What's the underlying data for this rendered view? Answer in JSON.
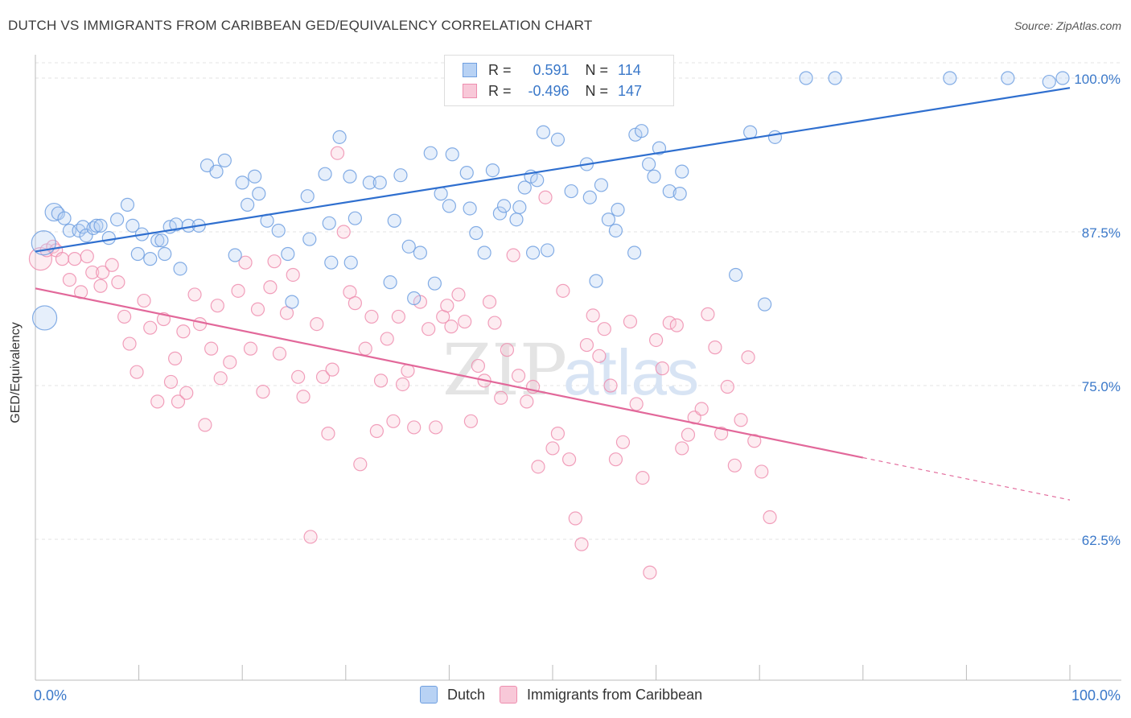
{
  "title": "DUTCH VS IMMIGRANTS FROM CARIBBEAN GED/EQUIVALENCY CORRELATION CHART",
  "source": "Source: ZipAtlas.com",
  "watermark": {
    "zip": "ZIP",
    "atlas": "atlas"
  },
  "legend_top": {
    "dutch": {
      "r_label": "R =",
      "r_value": "0.591",
      "n_label": "N =",
      "n_value": "114"
    },
    "caribbean": {
      "r_label": "R =",
      "r_value": "-0.496",
      "n_label": "N =",
      "n_value": "147"
    }
  },
  "colors": {
    "dutch": "#6f9fe0",
    "dutch_line": "#2f6fcf",
    "caribbean": "#ee8eaf",
    "caribbean_line": "#e2689a",
    "tick_label": "#3a78c9"
  },
  "chart_data": {
    "type": "scatter",
    "title": "DUTCH VS IMMIGRANTS FROM CARIBBEAN GED/EQUIVALENCY CORRELATION CHART",
    "xlabel": "",
    "ylabel": "GED/Equivalency",
    "xlim": [
      0,
      100
    ],
    "ylim": [
      51,
      101
    ],
    "x_tick_labels": [
      "0.0%",
      "100.0%"
    ],
    "y_ticks": [
      62.5,
      75.0,
      87.5,
      100.0
    ],
    "y_tick_labels": [
      "62.5%",
      "75.0%",
      "87.5%",
      "100.0%"
    ],
    "grid": true,
    "legend_position": "bottom",
    "series": [
      {
        "name": "Dutch",
        "trend": {
          "x": [
            0,
            100
          ],
          "y": [
            85.9,
            99.2
          ]
        },
        "points": [
          [
            0.8,
            86.6
          ],
          [
            0.9,
            80.5
          ],
          [
            1.8,
            89.1
          ],
          [
            2.2,
            89.0
          ],
          [
            2.8,
            88.6
          ],
          [
            3.3,
            87.6
          ],
          [
            4.2,
            87.6
          ],
          [
            4.6,
            87.9
          ],
          [
            4.9,
            87.2
          ],
          [
            5.6,
            87.8
          ],
          [
            5.9,
            88.0
          ],
          [
            6.3,
            88.0
          ],
          [
            7.1,
            87.0
          ],
          [
            7.9,
            88.5
          ],
          [
            8.9,
            89.7
          ],
          [
            9.4,
            88.0
          ],
          [
            9.9,
            85.7
          ],
          [
            10.3,
            87.3
          ],
          [
            11.1,
            85.3
          ],
          [
            11.8,
            86.8
          ],
          [
            12.2,
            86.8
          ],
          [
            12.5,
            85.7
          ],
          [
            13.0,
            87.9
          ],
          [
            13.6,
            88.1
          ],
          [
            14.0,
            84.5
          ],
          [
            14.8,
            88.0
          ],
          [
            15.8,
            88.0
          ],
          [
            16.6,
            92.9
          ],
          [
            17.5,
            92.4
          ],
          [
            18.3,
            93.3
          ],
          [
            19.3,
            85.6
          ],
          [
            20.0,
            91.5
          ],
          [
            20.5,
            89.7
          ],
          [
            21.2,
            92.0
          ],
          [
            21.6,
            90.6
          ],
          [
            22.4,
            88.4
          ],
          [
            23.5,
            87.6
          ],
          [
            24.4,
            85.7
          ],
          [
            24.8,
            81.8
          ],
          [
            26.3,
            90.4
          ],
          [
            26.5,
            86.9
          ],
          [
            28.0,
            92.2
          ],
          [
            28.4,
            88.2
          ],
          [
            28.6,
            85.0
          ],
          [
            29.4,
            95.2
          ],
          [
            30.4,
            92.0
          ],
          [
            30.5,
            85.0
          ],
          [
            30.9,
            88.6
          ],
          [
            32.3,
            91.5
          ],
          [
            33.3,
            91.5
          ],
          [
            34.3,
            83.4
          ],
          [
            34.7,
            88.4
          ],
          [
            35.3,
            92.1
          ],
          [
            36.1,
            86.3
          ],
          [
            36.6,
            82.1
          ],
          [
            37.2,
            85.8
          ],
          [
            38.2,
            93.9
          ],
          [
            38.6,
            83.3
          ],
          [
            39.2,
            90.6
          ],
          [
            40.0,
            89.6
          ],
          [
            40.3,
            93.8
          ],
          [
            41.7,
            92.3
          ],
          [
            42.0,
            89.4
          ],
          [
            42.6,
            87.4
          ],
          [
            43.4,
            85.8
          ],
          [
            44.2,
            92.5
          ],
          [
            44.9,
            89.0
          ],
          [
            45.3,
            89.6
          ],
          [
            46.5,
            88.5
          ],
          [
            46.8,
            89.5
          ],
          [
            47.3,
            91.1
          ],
          [
            47.9,
            92.0
          ],
          [
            48.1,
            85.8
          ],
          [
            48.5,
            91.7
          ],
          [
            49.1,
            95.6
          ],
          [
            49.5,
            86.0
          ],
          [
            50.5,
            95.0
          ],
          [
            51.8,
            90.8
          ],
          [
            53.3,
            93.0
          ],
          [
            53.6,
            90.3
          ],
          [
            54.2,
            83.5
          ],
          [
            54.7,
            91.3
          ],
          [
            55.4,
            88.5
          ],
          [
            56.1,
            87.6
          ],
          [
            56.3,
            89.3
          ],
          [
            57.9,
            85.8
          ],
          [
            58.0,
            95.4
          ],
          [
            58.6,
            95.7
          ],
          [
            59.3,
            93.0
          ],
          [
            59.8,
            92.0
          ],
          [
            60.3,
            94.3
          ],
          [
            61.3,
            90.8
          ],
          [
            62.3,
            90.6
          ],
          [
            62.5,
            92.4
          ],
          [
            67.7,
            84.0
          ],
          [
            69.1,
            95.6
          ],
          [
            70.5,
            81.6
          ],
          [
            71.5,
            95.2
          ],
          [
            74.5,
            100.0
          ],
          [
            77.3,
            100.0
          ],
          [
            88.4,
            100.0
          ],
          [
            94.0,
            100.0
          ],
          [
            98.0,
            99.7
          ],
          [
            99.3,
            100.0
          ]
        ]
      },
      {
        "name": "Immigrants from Caribbean",
        "trend": {
          "x": [
            0,
            100
          ],
          "y": [
            82.9,
            65.7
          ]
        },
        "points": [
          [
            0.5,
            85.3
          ],
          [
            1.1,
            86.0
          ],
          [
            1.7,
            86.3
          ],
          [
            2.0,
            86.0
          ],
          [
            2.6,
            85.3
          ],
          [
            3.3,
            83.6
          ],
          [
            3.8,
            85.3
          ],
          [
            4.4,
            82.6
          ],
          [
            5.0,
            85.5
          ],
          [
            5.5,
            84.2
          ],
          [
            6.3,
            83.1
          ],
          [
            6.5,
            84.2
          ],
          [
            7.4,
            84.8
          ],
          [
            8.0,
            83.4
          ],
          [
            8.6,
            80.6
          ],
          [
            9.1,
            78.4
          ],
          [
            9.8,
            76.1
          ],
          [
            10.5,
            81.9
          ],
          [
            11.1,
            79.7
          ],
          [
            11.8,
            73.7
          ],
          [
            12.4,
            80.4
          ],
          [
            13.1,
            75.3
          ],
          [
            13.5,
            77.2
          ],
          [
            13.8,
            73.7
          ],
          [
            14.3,
            79.4
          ],
          [
            14.6,
            74.4
          ],
          [
            15.4,
            82.4
          ],
          [
            15.9,
            80.0
          ],
          [
            16.4,
            71.8
          ],
          [
            17.0,
            78.0
          ],
          [
            17.6,
            81.5
          ],
          [
            17.9,
            75.6
          ],
          [
            18.8,
            76.9
          ],
          [
            19.6,
            82.7
          ],
          [
            20.3,
            85.0
          ],
          [
            20.8,
            78.0
          ],
          [
            21.5,
            81.2
          ],
          [
            22.0,
            74.5
          ],
          [
            22.7,
            83.0
          ],
          [
            23.1,
            85.1
          ],
          [
            23.6,
            77.6
          ],
          [
            24.3,
            80.9
          ],
          [
            24.9,
            84.0
          ],
          [
            25.4,
            75.7
          ],
          [
            25.9,
            74.1
          ],
          [
            26.6,
            62.7
          ],
          [
            27.2,
            80.0
          ],
          [
            27.8,
            75.7
          ],
          [
            28.3,
            71.1
          ],
          [
            28.7,
            76.3
          ],
          [
            29.2,
            93.9
          ],
          [
            29.8,
            87.5
          ],
          [
            30.4,
            82.6
          ],
          [
            30.9,
            81.7
          ],
          [
            31.4,
            68.6
          ],
          [
            31.9,
            78.0
          ],
          [
            32.5,
            80.6
          ],
          [
            33.0,
            71.3
          ],
          [
            33.4,
            75.4
          ],
          [
            34.0,
            78.8
          ],
          [
            34.6,
            72.1
          ],
          [
            35.1,
            80.6
          ],
          [
            35.5,
            75.1
          ],
          [
            36.0,
            76.2
          ],
          [
            36.6,
            71.6
          ],
          [
            37.2,
            81.8
          ],
          [
            38.0,
            79.6
          ],
          [
            38.7,
            71.6
          ],
          [
            39.4,
            80.6
          ],
          [
            39.8,
            81.5
          ],
          [
            40.2,
            79.8
          ],
          [
            40.9,
            82.4
          ],
          [
            41.5,
            80.2
          ],
          [
            42.1,
            72.1
          ],
          [
            42.8,
            76.6
          ],
          [
            43.4,
            75.4
          ],
          [
            43.9,
            81.8
          ],
          [
            44.4,
            80.1
          ],
          [
            45.0,
            74.0
          ],
          [
            45.6,
            77.9
          ],
          [
            46.2,
            85.6
          ],
          [
            46.7,
            75.8
          ],
          [
            47.5,
            73.7
          ],
          [
            48.1,
            74.9
          ],
          [
            48.6,
            68.4
          ],
          [
            49.3,
            90.3
          ],
          [
            50.0,
            69.9
          ],
          [
            50.5,
            71.1
          ],
          [
            51.0,
            82.7
          ],
          [
            51.6,
            69.0
          ],
          [
            52.2,
            64.2
          ],
          [
            52.8,
            62.1
          ],
          [
            53.3,
            78.3
          ],
          [
            53.9,
            80.7
          ],
          [
            54.5,
            77.4
          ],
          [
            55.0,
            79.6
          ],
          [
            55.6,
            75.0
          ],
          [
            56.1,
            69.0
          ],
          [
            56.8,
            70.4
          ],
          [
            57.5,
            80.2
          ],
          [
            58.1,
            73.5
          ],
          [
            58.7,
            67.5
          ],
          [
            59.4,
            59.8
          ],
          [
            60.0,
            78.7
          ],
          [
            60.6,
            76.4
          ],
          [
            61.3,
            80.1
          ],
          [
            62.0,
            79.9
          ],
          [
            62.5,
            69.9
          ],
          [
            63.1,
            71.0
          ],
          [
            63.7,
            72.4
          ],
          [
            64.4,
            73.1
          ],
          [
            65.0,
            80.8
          ],
          [
            65.7,
            78.1
          ],
          [
            66.3,
            71.1
          ],
          [
            66.9,
            74.9
          ],
          [
            67.6,
            68.5
          ],
          [
            68.2,
            72.2
          ],
          [
            68.9,
            77.3
          ],
          [
            69.5,
            70.5
          ],
          [
            70.2,
            68.0
          ],
          [
            71.0,
            64.3
          ]
        ]
      }
    ]
  }
}
